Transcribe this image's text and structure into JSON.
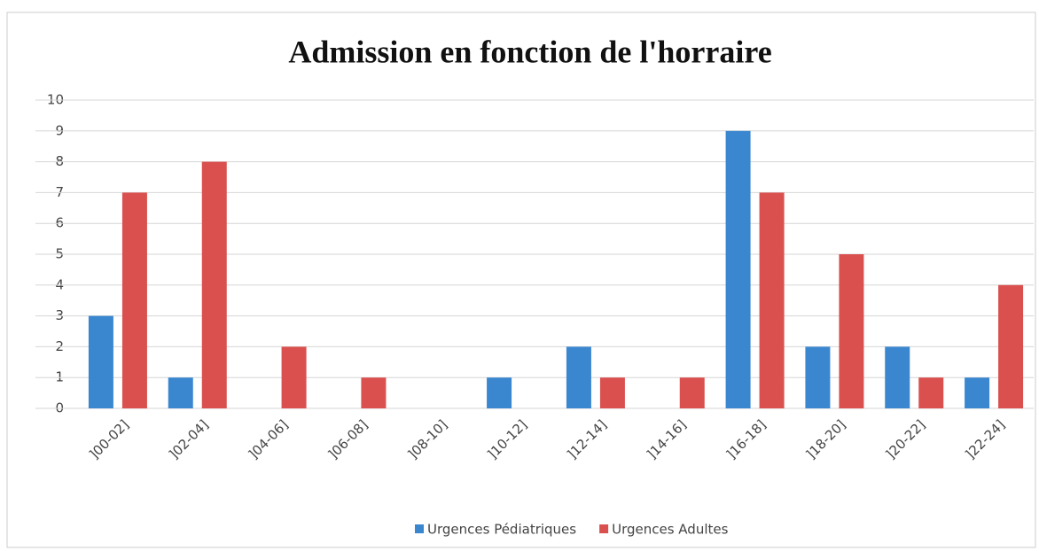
{
  "chart_data": {
    "type": "bar",
    "title": "Admission en fonction de l'horraire",
    "categories": [
      "]00-02]",
      "]02-04]",
      "]04-06]",
      "]06-08]",
      "]08-10]",
      "]10-12]",
      "]12-14]",
      "]14-16]",
      "]16-18]",
      "]18-20]",
      "]20-22]",
      "]22-24]"
    ],
    "series": [
      {
        "name": "Urgences Pédiatriques",
        "color": "#3a87d0",
        "values": [
          3,
          1,
          0,
          0,
          0,
          1,
          2,
          0,
          9,
          2,
          2,
          1
        ]
      },
      {
        "name": "Urgences Adultes",
        "color": "#d9504e",
        "values": [
          7,
          8,
          2,
          1,
          0,
          0,
          1,
          1,
          7,
          5,
          1,
          4
        ]
      }
    ],
    "ylim": [
      0,
      10
    ],
    "yticks": [
      0,
      1,
      2,
      3,
      4,
      5,
      6,
      7,
      8,
      9,
      10
    ],
    "grid": true,
    "legend": "bottom"
  }
}
